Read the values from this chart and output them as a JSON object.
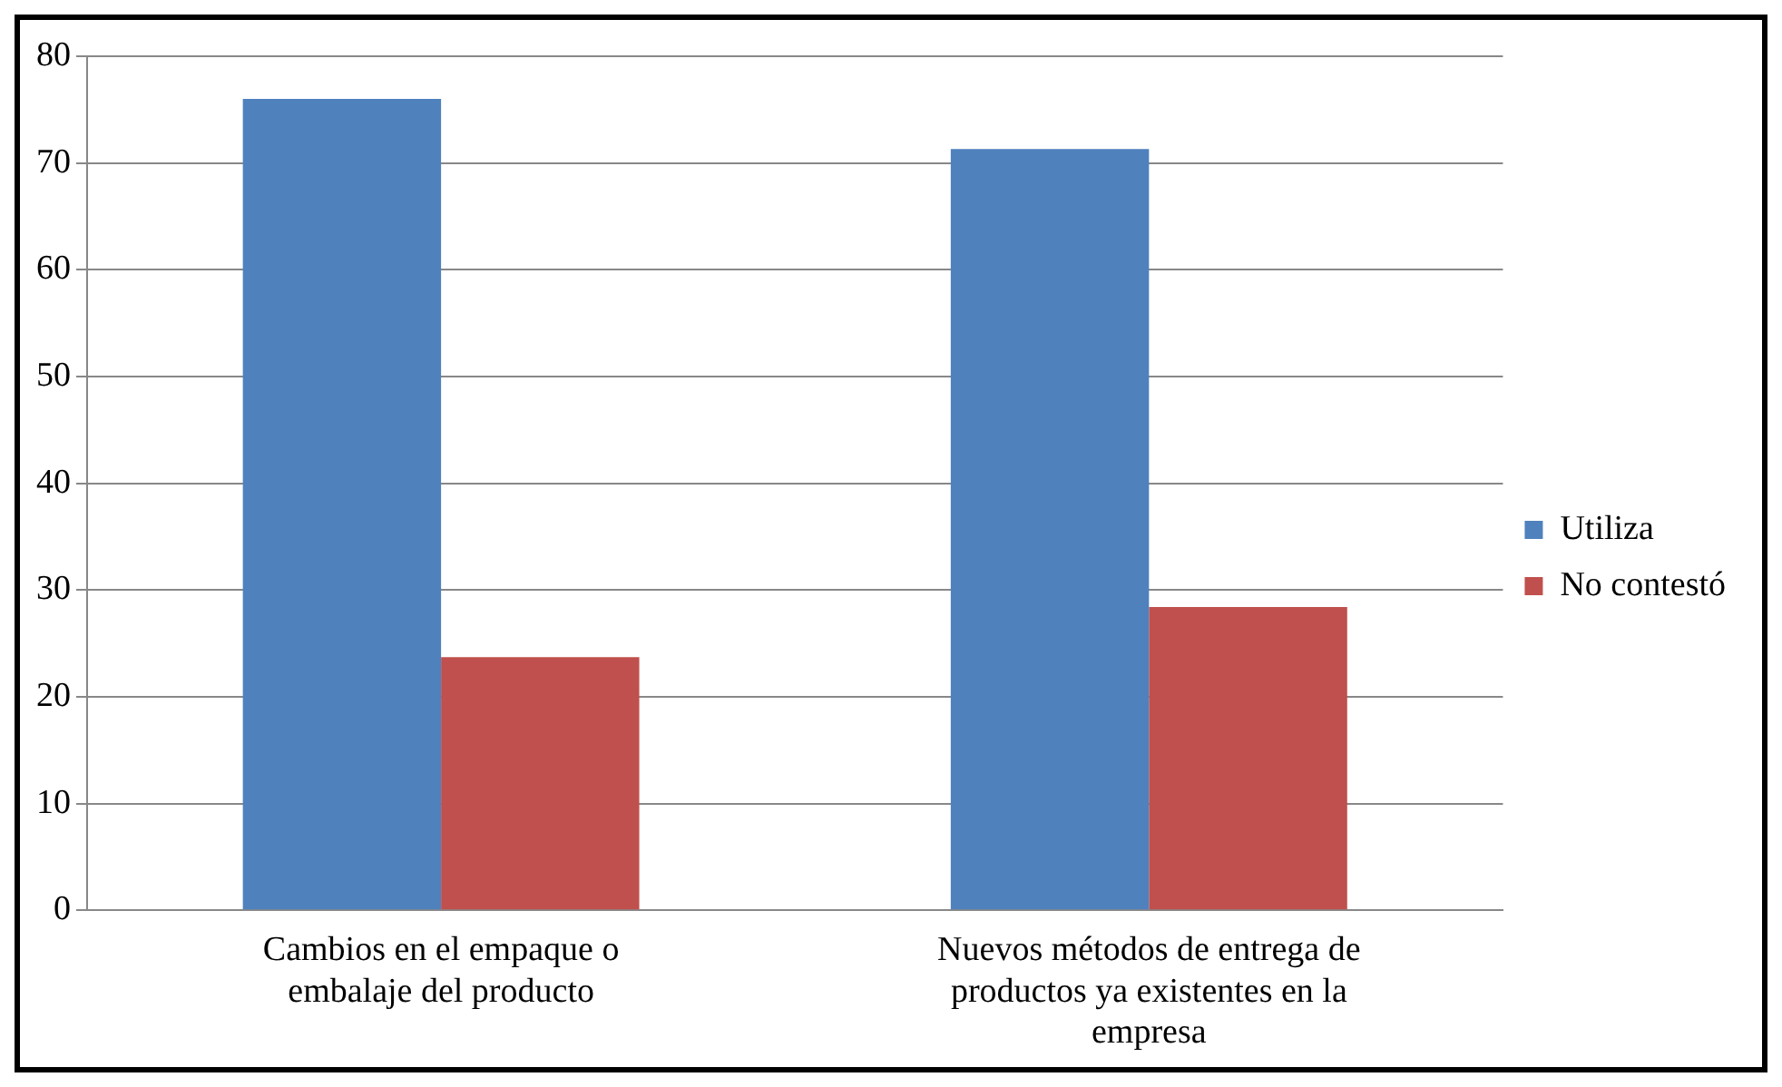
{
  "chart_data": {
    "type": "bar",
    "categories": [
      "Cambios en el empaque o embalaje del producto",
      "Nuevos métodos de entrega de productos ya existentes en la empresa"
    ],
    "series": [
      {
        "name": "Utiliza",
        "color": "#4f81bd",
        "values": [
          76,
          71.3
        ]
      },
      {
        "name": "No contestó",
        "color": "#c0504d",
        "values": [
          23.7,
          28.4
        ]
      }
    ],
    "ylim": [
      0,
      80
    ],
    "yticks": [
      0,
      10,
      20,
      30,
      40,
      50,
      60,
      70,
      80
    ],
    "grid": "y",
    "legend": "right"
  }
}
